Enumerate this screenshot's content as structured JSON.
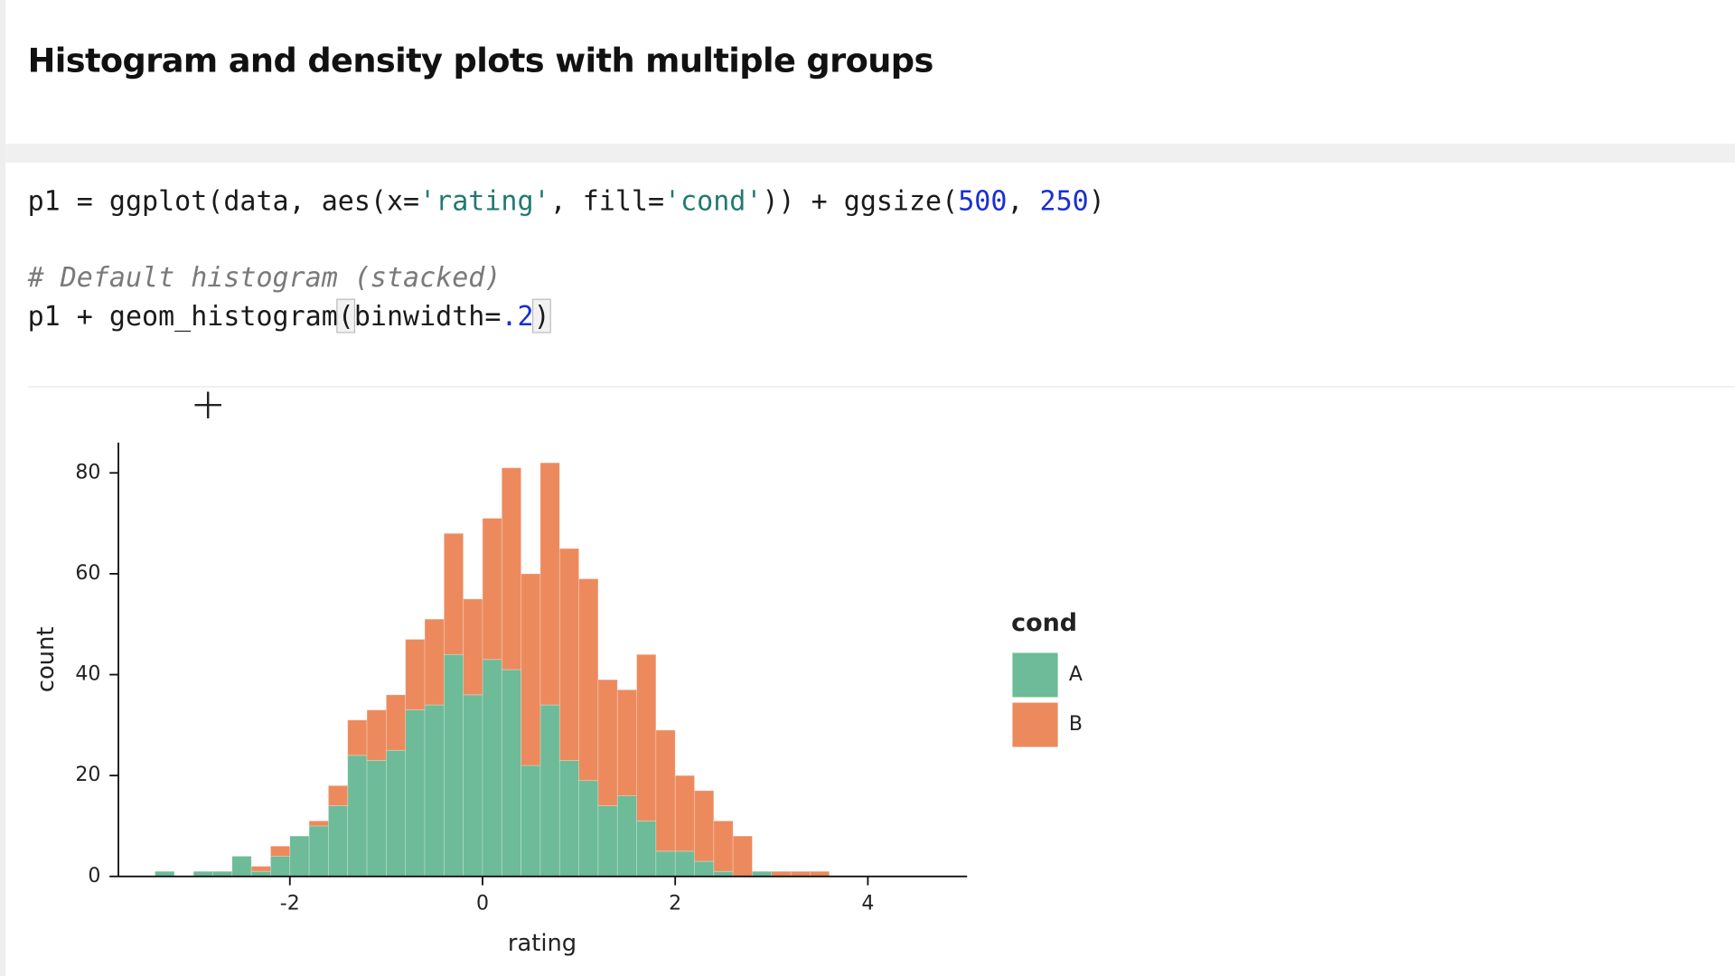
{
  "header": {
    "title": "Histogram and density plots with multiple groups"
  },
  "code": {
    "lines": [
      [
        {
          "text": "p1 = ggplot(data, aes(x=",
          "color": "#1a1a1a"
        },
        {
          "text": "'rating'",
          "color": "#227a70"
        },
        {
          "text": ", fill=",
          "color": "#1a1a1a"
        },
        {
          "text": "'cond'",
          "color": "#227a70"
        },
        {
          "text": ")) + ggsize(",
          "color": "#1a1a1a"
        },
        {
          "text": "500",
          "color": "#1a2fd0"
        },
        {
          "text": ", ",
          "color": "#1a1a1a"
        },
        {
          "text": "250",
          "color": "#1a2fd0"
        },
        {
          "text": ")",
          "color": "#1a1a1a"
        }
      ],
      [],
      [
        {
          "text": "# Default histogram (stacked)",
          "color": "#7a7a7a",
          "italic": true
        }
      ],
      [
        {
          "text": "p1 + geom_histogram",
          "color": "#1a1a1a"
        },
        {
          "text": "(",
          "color": "#1a1a1a",
          "highlight": true
        },
        {
          "text": "binwidth=",
          "color": "#1a1a1a"
        },
        {
          "text": ".2",
          "color": "#1a2fd0"
        },
        {
          "text": ")",
          "color": "#1a1a1a",
          "highlight": true
        }
      ]
    ]
  },
  "chart_data": {
    "type": "histogram",
    "stacked": true,
    "bins": [
      -3.4,
      -3.2,
      -3.0,
      -2.8,
      -2.6,
      -2.4,
      -2.2,
      -2.0,
      -1.8,
      -1.6,
      -1.4,
      -1.2,
      -1.0,
      -0.8,
      -0.6,
      -0.4,
      -0.2,
      0,
      0.2,
      0.4,
      0.6,
      0.8,
      1.0,
      1.2,
      1.4,
      1.6,
      1.8,
      2.0,
      2.2,
      2.4,
      2.6,
      2.8,
      3.0,
      3.2,
      3.4,
      3.6,
      3.8,
      4.0,
      4.2,
      4.4
    ],
    "series": [
      {
        "name": "A",
        "color": "#6dbb98",
        "values": [
          1,
          0,
          1,
          1,
          4,
          1,
          4,
          8,
          10,
          14,
          24,
          23,
          25,
          33,
          34,
          44,
          36,
          43,
          41,
          22,
          34,
          23,
          19,
          14,
          16,
          11,
          5,
          5,
          3,
          1,
          0,
          1,
          0,
          0,
          0,
          0,
          0,
          0,
          0
        ]
      },
      {
        "name": "B",
        "color": "#ec8a5e",
        "values": [
          0,
          0,
          0,
          0,
          0,
          1,
          2,
          0,
          1,
          4,
          7,
          10,
          11,
          14,
          17,
          24,
          19,
          28,
          40,
          38,
          48,
          42,
          40,
          25,
          21,
          33,
          24,
          15,
          14,
          10,
          8,
          0,
          1,
          1,
          1,
          0,
          0,
          0,
          0
        ]
      }
    ],
    "xlim": [
      -3.78,
      5.03
    ],
    "ylim": [
      0,
      86
    ],
    "xticks": [
      -2,
      0,
      2,
      4
    ],
    "yticks": [
      0,
      20,
      40,
      60,
      80
    ],
    "x_label": "rating",
    "y_label": "count",
    "legend_title": "cond"
  }
}
